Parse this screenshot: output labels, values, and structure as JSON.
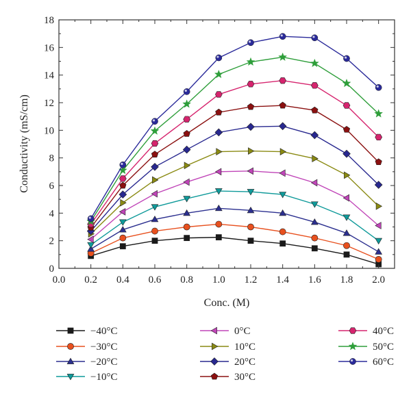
{
  "chart_data": {
    "type": "line",
    "xlabel": "Conc. (M)",
    "ylabel": "Conductivity (mS/cm)",
    "xlim": [
      0.0,
      2.1
    ],
    "ylim": [
      0,
      18
    ],
    "xticks": [
      "0.0",
      "0.2",
      "0.4",
      "0.6",
      "0.8",
      "1.0",
      "1.2",
      "1.4",
      "1.6",
      "1.8",
      "2.0"
    ],
    "yticks": [
      "0",
      "2",
      "4",
      "6",
      "8",
      "10",
      "12",
      "14",
      "16",
      "18"
    ],
    "grid": false,
    "legend_position": "bottom",
    "x": [
      0.2,
      0.4,
      0.6,
      0.8,
      1.0,
      1.2,
      1.4,
      1.6,
      1.8,
      2.0
    ],
    "series": [
      {
        "name": "−40°C",
        "color": "#1a1a1a",
        "marker": "square",
        "values": [
          0.9,
          1.6,
          2.0,
          2.2,
          2.25,
          2.0,
          1.8,
          1.45,
          1.0,
          0.3
        ]
      },
      {
        "name": "−30°C",
        "color": "#e8501e",
        "marker": "circle",
        "values": [
          1.1,
          2.2,
          2.7,
          3.0,
          3.2,
          3.0,
          2.65,
          2.2,
          1.65,
          0.65
        ]
      },
      {
        "name": "−20°C",
        "color": "#2b2f8f",
        "marker": "triangle-up",
        "values": [
          1.4,
          2.8,
          3.55,
          4.0,
          4.35,
          4.2,
          4.0,
          3.35,
          2.55,
          1.2
        ]
      },
      {
        "name": "−10°C",
        "color": "#0f9a9a",
        "marker": "triangle-down",
        "values": [
          1.7,
          3.35,
          4.45,
          5.05,
          5.6,
          5.55,
          5.35,
          4.65,
          3.7,
          2.0
        ]
      },
      {
        "name": "0°C",
        "color": "#c045b8",
        "marker": "triangle-left",
        "values": [
          2.1,
          4.1,
          5.4,
          6.25,
          7.0,
          7.05,
          6.9,
          6.2,
          5.1,
          3.1
        ]
      },
      {
        "name": "10°C",
        "color": "#8a8a12",
        "marker": "triangle-right",
        "values": [
          2.5,
          4.75,
          6.4,
          7.45,
          8.45,
          8.5,
          8.45,
          7.95,
          6.75,
          4.5
        ]
      },
      {
        "name": "20°C",
        "color": "#28288f",
        "marker": "diamond",
        "values": [
          2.7,
          5.35,
          7.35,
          8.6,
          9.85,
          10.25,
          10.3,
          9.65,
          8.3,
          6.05
        ]
      },
      {
        "name": "30°C",
        "color": "#8b1010",
        "marker": "pentagon",
        "values": [
          2.95,
          6.0,
          8.25,
          9.75,
          11.3,
          11.7,
          11.8,
          11.45,
          10.05,
          7.7
        ]
      },
      {
        "name": "40°C",
        "color": "#d6246e",
        "marker": "hexagon",
        "values": [
          3.2,
          6.5,
          9.05,
          10.8,
          12.6,
          13.35,
          13.6,
          13.25,
          11.8,
          9.5
        ]
      },
      {
        "name": "50°C",
        "color": "#2e9e3a",
        "marker": "star",
        "values": [
          3.4,
          7.1,
          9.95,
          11.9,
          14.05,
          14.95,
          15.3,
          14.85,
          13.4,
          11.2
        ]
      },
      {
        "name": "60°C",
        "color": "#2a2a9a",
        "marker": "sphere",
        "values": [
          3.6,
          7.5,
          10.65,
          12.8,
          15.25,
          16.35,
          16.8,
          16.7,
          15.2,
          13.1
        ]
      }
    ]
  }
}
